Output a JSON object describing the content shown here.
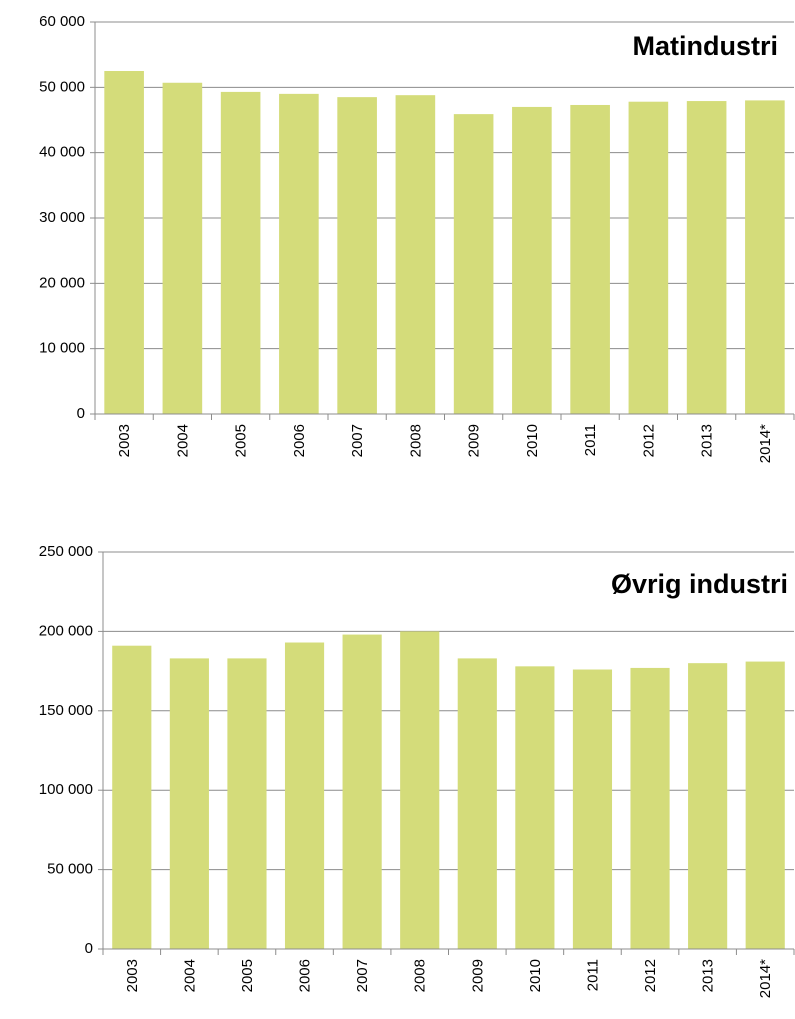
{
  "chart_data": [
    {
      "type": "bar",
      "title": "Matindustri",
      "categories": [
        "2003",
        "2004",
        "2005",
        "2006",
        "2007",
        "2008",
        "2009",
        "2010",
        "2011",
        "2012",
        "2013",
        "2014*"
      ],
      "values": [
        52500,
        50700,
        49300,
        49000,
        48500,
        48800,
        45900,
        47000,
        47300,
        47800,
        47900,
        48000
      ],
      "color": "#d4dc7a",
      "ylim": [
        0,
        60000
      ],
      "yticks": [
        0,
        {
          "value": 10000,
          "label": "10 000"
        },
        {
          "value": 20000,
          "label": "20 000"
        },
        {
          "value": 30000,
          "label": "30 000"
        },
        {
          "value": 40000,
          "label": "40 000"
        },
        {
          "value": 50000,
          "label": "50 000"
        },
        {
          "value": 60000,
          "label": "60 000"
        }
      ],
      "grid": true
    },
    {
      "type": "bar",
      "title": "Øvrig industri",
      "categories": [
        "2003",
        "2004",
        "2005",
        "2006",
        "2007",
        "2008",
        "2009",
        "2010",
        "2011",
        "2012",
        "2013",
        "2014*"
      ],
      "values": [
        191000,
        183000,
        183000,
        193000,
        198000,
        200000,
        183000,
        178000,
        176000,
        177000,
        180000,
        181000
      ],
      "color": "#d4dc7a",
      "ylim": [
        0,
        250000
      ],
      "yticks": [
        0,
        {
          "value": 50000,
          "label": "50 000"
        },
        {
          "value": 100000,
          "label": "100 000"
        },
        {
          "value": 150000,
          "label": "150 000"
        },
        {
          "value": 200000,
          "label": "200 000"
        },
        {
          "value": 250000,
          "label": "250 000"
        }
      ],
      "grid": true
    }
  ]
}
